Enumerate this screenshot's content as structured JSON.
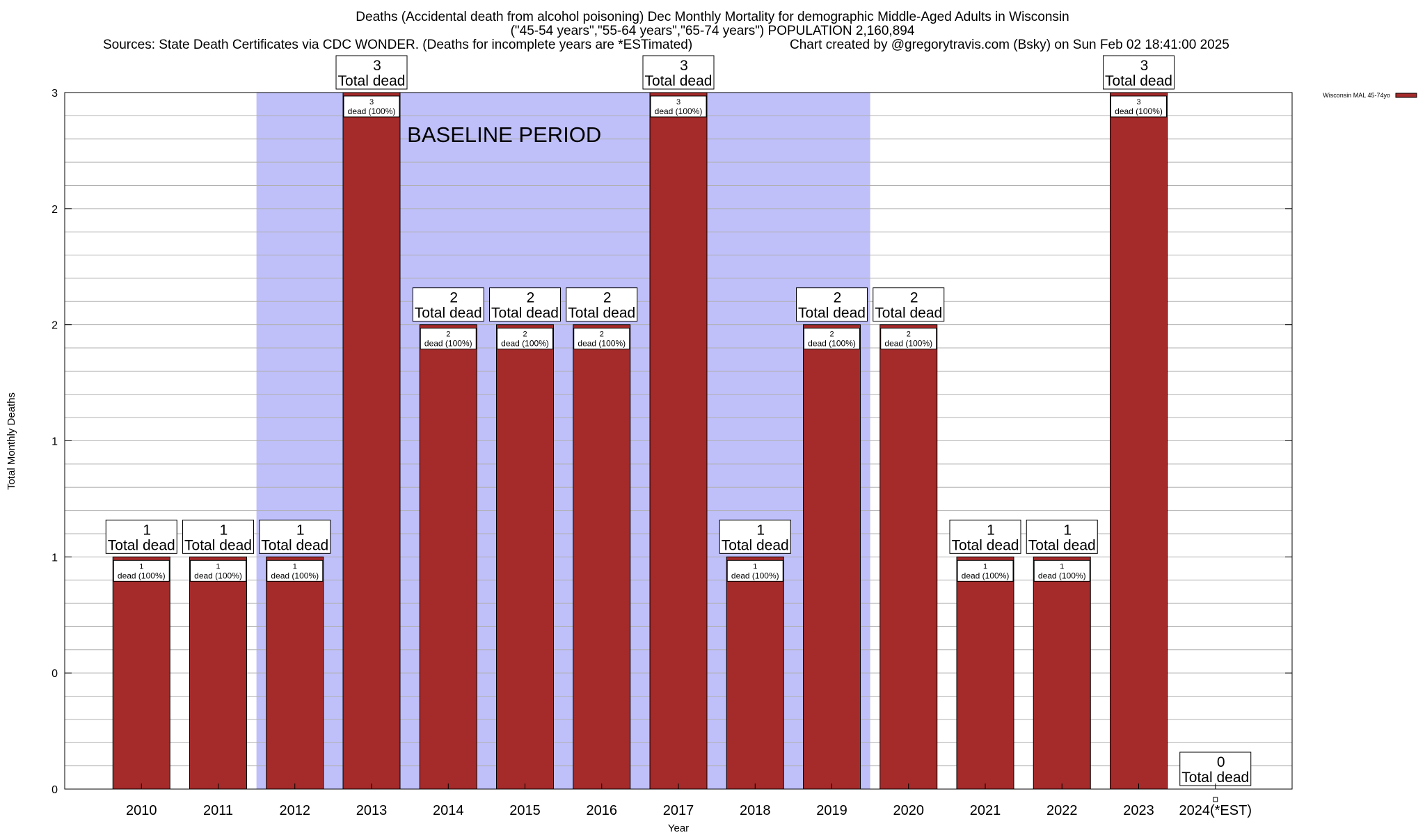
{
  "header": {
    "title_line1": "Deaths (Accidental death from alcohol poisoning) Dec Monthly Mortality for demographic Middle-Aged Adults in Wisconsin",
    "title_line2": "(\"45-54 years\",\"55-64 years\",\"65-74 years\") POPULATION 2,160,894",
    "sources": "Sources: State Death Certificates via CDC WONDER. (Deaths for incomplete years are *ESTimated)",
    "credit": "Chart created by @gregorytravis.com (Bsky) on Sun Feb 02 18:41:00 2025"
  },
  "chart_data": {
    "type": "bar",
    "title": "Deaths (Accidental death from alcohol poisoning) Dec Monthly Mortality for demographic Middle-Aged Adults in Wisconsin",
    "xlabel": "Year",
    "ylabel": "Total Monthly Deaths",
    "categories": [
      "2010",
      "2011",
      "2012",
      "2013",
      "2014",
      "2015",
      "2016",
      "2017",
      "2018",
      "2019",
      "2020",
      "2021",
      "2022",
      "2023",
      "2024(*EST)"
    ],
    "series": [
      {
        "name": "Wisconsin MAL 45-74yo",
        "color": "#a52a2a",
        "values": [
          1,
          1,
          1,
          3,
          2,
          2,
          2,
          3,
          1,
          2,
          2,
          1,
          1,
          3,
          0
        ]
      }
    ],
    "ylim": [
      0,
      3
    ],
    "y_tick_values": [
      0,
      0.5,
      1,
      1.5,
      2,
      2.5,
      3
    ],
    "y_tick_labels": [
      "0",
      "0",
      "1",
      "1",
      "2",
      "2",
      "3"
    ],
    "total_label_suffix": "Total dead",
    "inner_label_suffix": "dead (100%)",
    "baseline_period": {
      "label": "BASELINE PERIOD",
      "start": "2012",
      "end": "2019",
      "color": "#bfbffa"
    },
    "legend": {
      "position": "top-right",
      "label": "Wisconsin MAL 45-74yo"
    },
    "grid": true
  }
}
